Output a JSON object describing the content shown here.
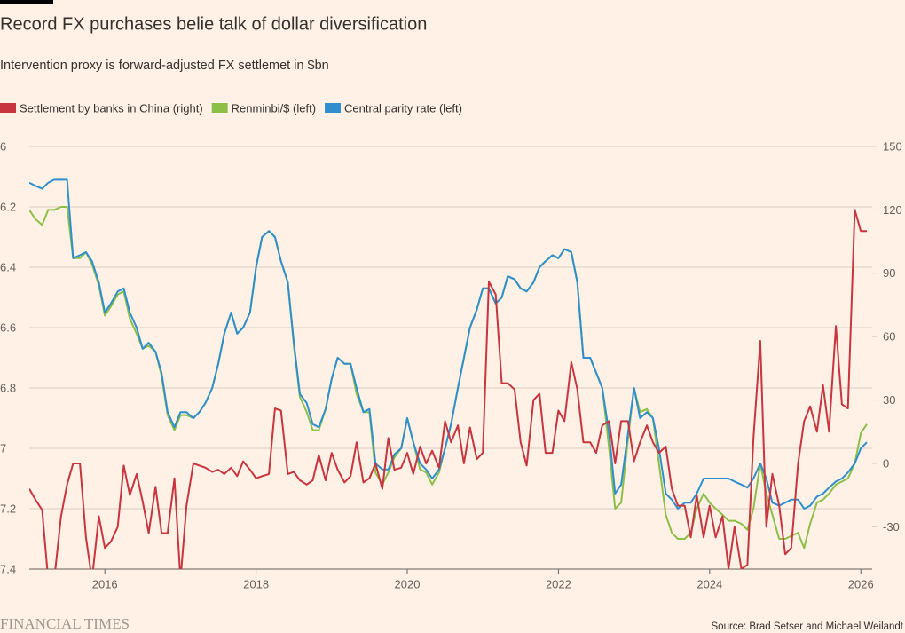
{
  "chart_data": {
    "type": "line",
    "title": "Record FX purchases belie talk of dollar diversification",
    "subtitle": "Intervention proxy is forward-adjusted FX settlemet in $bn",
    "source": "Source: Brad Setser and Michael Weilandt",
    "brand": "FINANCIAL TIMES",
    "x": [
      2015.0,
      2015.08,
      2015.17,
      2015.25,
      2015.33,
      2015.42,
      2015.5,
      2015.58,
      2015.67,
      2015.75,
      2015.83,
      2015.92,
      2016.0,
      2016.08,
      2016.17,
      2016.25,
      2016.33,
      2016.42,
      2016.5,
      2016.58,
      2016.67,
      2016.75,
      2016.83,
      2016.92,
      2017.0,
      2017.08,
      2017.17,
      2017.25,
      2017.33,
      2017.42,
      2017.5,
      2017.58,
      2017.67,
      2017.75,
      2017.83,
      2017.92,
      2018.0,
      2018.08,
      2018.17,
      2018.25,
      2018.33,
      2018.42,
      2018.5,
      2018.58,
      2018.67,
      2018.75,
      2018.83,
      2018.92,
      2019.0,
      2019.08,
      2019.17,
      2019.25,
      2019.33,
      2019.42,
      2019.5,
      2019.58,
      2019.67,
      2019.75,
      2019.83,
      2019.92,
      2020.0,
      2020.08,
      2020.17,
      2020.25,
      2020.33,
      2020.42,
      2020.5,
      2020.58,
      2020.67,
      2020.75,
      2020.83,
      2020.92,
      2021.0,
      2021.08,
      2021.17,
      2021.25,
      2021.33,
      2021.42,
      2021.5,
      2021.58,
      2021.67,
      2021.75,
      2021.83,
      2021.92,
      2022.0,
      2022.08,
      2022.17,
      2022.25,
      2022.33,
      2022.42,
      2022.5,
      2022.58,
      2022.67,
      2022.75,
      2022.83,
      2022.92,
      2023.0,
      2023.08,
      2023.17,
      2023.25,
      2023.33,
      2023.42,
      2023.5,
      2023.58,
      2023.67,
      2023.75,
      2023.83,
      2023.92,
      2024.0,
      2024.08,
      2024.17,
      2024.25,
      2024.33,
      2024.42,
      2024.5,
      2024.58,
      2024.67,
      2024.75,
      2024.83,
      2024.92,
      2025.0,
      2025.08,
      2025.17,
      2025.25,
      2025.33,
      2025.42,
      2025.5,
      2025.58,
      2025.67,
      2025.75,
      2025.83,
      2025.92,
      2026.0,
      2026.08
    ],
    "series": [
      {
        "name": "Settlement by banks in China (right)",
        "color": "#c8353f",
        "axis": "y2",
        "values": [
          -12,
          -17,
          -22,
          -55,
          -55,
          -25,
          -10,
          0,
          0,
          -35,
          -55,
          -25,
          -40,
          -37,
          -30,
          -1,
          -15,
          -5,
          -18,
          -33,
          -11,
          -33,
          -33,
          -7,
          -55,
          -20,
          0,
          -1,
          -2,
          -4,
          -3,
          -5,
          -2,
          -6,
          1,
          -3,
          -7,
          -6,
          -5,
          26,
          25,
          -5,
          -4,
          -8,
          -10,
          -8,
          4,
          -8,
          5,
          -3,
          -9,
          -6,
          10,
          -9,
          -7,
          0,
          -12,
          12,
          -3,
          -2,
          5,
          -5,
          8,
          0,
          6,
          -2,
          20,
          10,
          18,
          0,
          17,
          2,
          5,
          86,
          80,
          38,
          38,
          35,
          10,
          -1,
          30,
          33,
          5,
          5,
          25,
          20,
          48,
          35,
          10,
          10,
          5,
          18,
          20,
          0,
          20,
          20,
          1,
          10,
          18,
          10,
          5,
          8,
          -12,
          -20,
          -20,
          -35,
          -15,
          -35,
          -20,
          -35,
          -25,
          -50,
          -30,
          -50,
          -48,
          12,
          58,
          -30,
          -5,
          -20,
          -43,
          -40,
          0,
          20,
          27,
          15,
          37,
          15,
          65,
          28,
          26,
          120,
          110,
          110
        ]
      },
      {
        "name": "Renminbi/$ (left)",
        "color": "#8cbf48",
        "values": [
          6.21,
          6.24,
          6.26,
          6.21,
          6.21,
          6.2,
          6.2,
          6.37,
          6.37,
          6.35,
          6.39,
          6.46,
          6.56,
          6.53,
          6.49,
          6.48,
          6.57,
          6.62,
          6.67,
          6.66,
          6.68,
          6.76,
          6.89,
          6.94,
          6.89,
          6.89,
          6.9,
          6.88,
          6.85,
          6.8,
          6.72,
          6.62,
          6.55,
          6.62,
          6.6,
          6.55,
          6.4,
          6.3,
          6.28,
          6.3,
          6.38,
          6.45,
          6.66,
          6.83,
          6.88,
          6.94,
          6.94,
          6.87,
          6.77,
          6.7,
          6.72,
          6.72,
          6.82,
          6.88,
          6.88,
          7.08,
          7.12,
          7.08,
          7.03,
          7.0,
          6.9,
          6.98,
          7.07,
          7.08,
          7.12,
          7.08,
          7.0,
          6.92,
          6.8,
          6.7,
          6.6,
          6.54,
          6.47,
          6.47,
          6.52,
          6.5,
          6.43,
          6.44,
          6.47,
          6.48,
          6.45,
          6.4,
          6.38,
          6.36,
          6.37,
          6.34,
          6.35,
          6.45,
          6.7,
          6.7,
          6.75,
          6.8,
          7.0,
          7.2,
          7.18,
          6.97,
          6.8,
          6.88,
          6.87,
          6.9,
          7.05,
          7.22,
          7.28,
          7.3,
          7.3,
          7.28,
          7.2,
          7.15,
          7.18,
          7.2,
          7.22,
          7.24,
          7.24,
          7.25,
          7.27,
          7.2,
          7.05,
          7.15,
          7.22,
          7.3,
          7.3,
          7.29,
          7.28,
          7.33,
          7.25,
          7.18,
          7.17,
          7.15,
          7.12,
          7.11,
          7.1,
          7.05,
          6.95,
          6.92
        ]
      },
      {
        "name": "Central parity rate (left)",
        "color": "#2f8fce",
        "values": [
          6.12,
          6.13,
          6.14,
          6.12,
          6.11,
          6.11,
          6.11,
          6.37,
          6.36,
          6.35,
          6.38,
          6.45,
          6.55,
          6.52,
          6.48,
          6.47,
          6.55,
          6.6,
          6.67,
          6.65,
          6.68,
          6.75,
          6.88,
          6.93,
          6.88,
          6.88,
          6.9,
          6.88,
          6.85,
          6.8,
          6.72,
          6.62,
          6.55,
          6.62,
          6.6,
          6.55,
          6.4,
          6.3,
          6.28,
          6.3,
          6.38,
          6.45,
          6.65,
          6.82,
          6.85,
          6.92,
          6.93,
          6.87,
          6.77,
          6.7,
          6.72,
          6.72,
          6.8,
          6.88,
          6.87,
          7.05,
          7.07,
          7.07,
          7.02,
          7.0,
          6.9,
          6.98,
          7.05,
          7.07,
          7.1,
          7.07,
          7.0,
          6.92,
          6.8,
          6.7,
          6.6,
          6.54,
          6.47,
          6.47,
          6.52,
          6.5,
          6.43,
          6.44,
          6.47,
          6.48,
          6.45,
          6.4,
          6.38,
          6.36,
          6.37,
          6.34,
          6.35,
          6.45,
          6.7,
          6.7,
          6.75,
          6.8,
          6.95,
          7.15,
          7.12,
          6.95,
          6.8,
          6.9,
          6.88,
          6.9,
          7.0,
          7.15,
          7.17,
          7.2,
          7.18,
          7.18,
          7.15,
          7.1,
          7.1,
          7.1,
          7.1,
          7.1,
          7.11,
          7.12,
          7.13,
          7.1,
          7.05,
          7.1,
          7.18,
          7.19,
          7.18,
          7.17,
          7.17,
          7.2,
          7.19,
          7.16,
          7.15,
          7.13,
          7.11,
          7.1,
          7.08,
          7.05,
          7.0,
          6.98
        ]
      }
    ],
    "xlim": [
      2015,
      2026.15
    ],
    "xticks": [
      2016,
      2018,
      2020,
      2022,
      2024,
      2026
    ],
    "ylim": [
      6,
      7.4
    ],
    "y_inverted": true,
    "yticks": [
      6,
      6.2,
      6.4,
      6.6,
      6.8,
      7,
      7.2,
      7.4
    ],
    "y2lim": [
      -50,
      150
    ],
    "y2ticks": [
      150,
      120,
      90,
      60,
      30,
      0,
      -30
    ],
    "grid": true
  }
}
